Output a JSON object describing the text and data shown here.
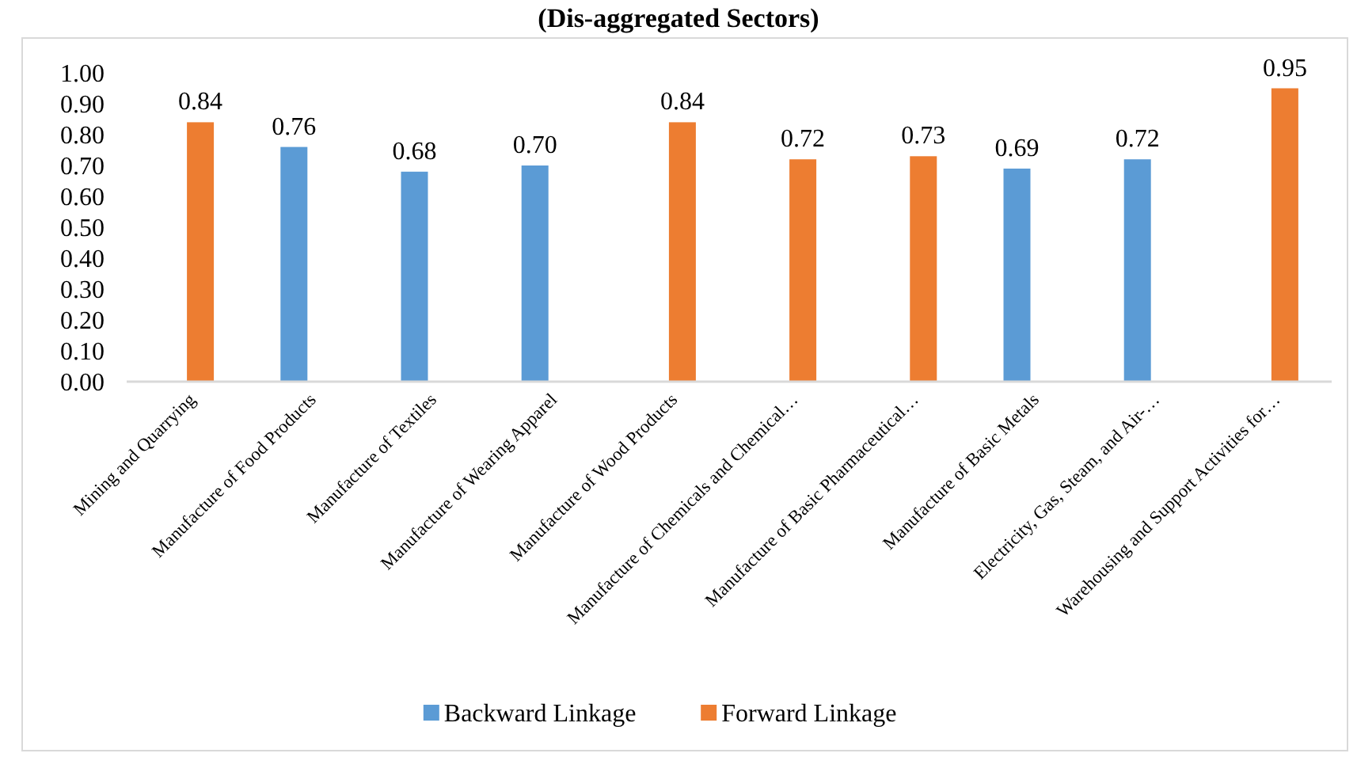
{
  "chart_data": {
    "type": "bar",
    "title": "(Dis-aggregated Sectors)",
    "categories": [
      "Mining and Quarrying",
      "Manufacture of Food Products",
      "Manufacture of Textiles",
      "Manufacture of Wearing Apparel",
      "Manufacture of Wood Products",
      "Manufacture of Chemicals and Chemical…",
      "Manufacture of Basic Pharmaceutical…",
      "Manufacture of Basic Metals",
      "Electricity, Gas, Steam, and Air-…",
      "Warehousing and Support Activities for…"
    ],
    "series": [
      {
        "name": "Backward Linkage",
        "color": "#5b9bd5",
        "values": [
          null,
          0.76,
          0.68,
          0.7,
          null,
          null,
          null,
          0.69,
          0.72,
          null
        ],
        "value_labels": [
          null,
          "0.76",
          "0.68",
          "0.70",
          null,
          null,
          null,
          "0.69",
          "0.72",
          null
        ]
      },
      {
        "name": "Forward Linkage",
        "color": "#ed7d31",
        "values": [
          0.84,
          null,
          null,
          null,
          0.84,
          0.72,
          0.73,
          null,
          null,
          0.95
        ],
        "value_labels": [
          "0.84",
          null,
          null,
          null,
          "0.84",
          "0.72",
          "0.73",
          null,
          null,
          "0.95"
        ]
      }
    ],
    "ylim": [
      0,
      1
    ],
    "yticks": [
      {
        "value": 0,
        "label": "0.00"
      },
      {
        "value": 0.1,
        "label": "0.10"
      },
      {
        "value": 0.2,
        "label": "0.20"
      },
      {
        "value": 0.3,
        "label": "0.30"
      },
      {
        "value": 0.4,
        "label": "0.40"
      },
      {
        "value": 0.5,
        "label": "0.50"
      },
      {
        "value": 0.6,
        "label": "0.60"
      },
      {
        "value": 0.7,
        "label": "0.70"
      },
      {
        "value": 0.8,
        "label": "0.80"
      },
      {
        "value": 0.9,
        "label": "0.90"
      },
      {
        "value": 1,
        "label": "1.00"
      }
    ],
    "legend": "bottom",
    "grid": false
  }
}
